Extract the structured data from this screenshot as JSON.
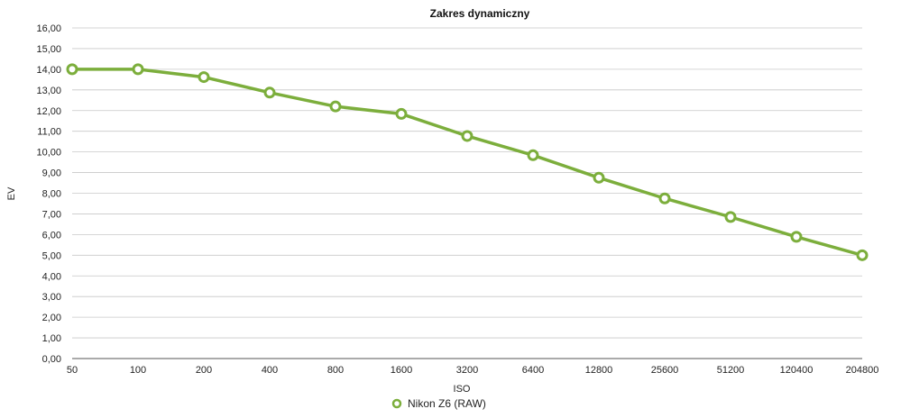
{
  "chart_data": {
    "type": "line",
    "title": "Zakres dynamiczny",
    "xlabel": "ISO",
    "ylabel": "EV",
    "categories": [
      "50",
      "100",
      "200",
      "400",
      "800",
      "1600",
      "3200",
      "6400",
      "12800",
      "25600",
      "51200",
      "120400",
      "204800"
    ],
    "series": [
      {
        "name": "Nikon Z6 (RAW)",
        "color": "#7cae3c",
        "values": [
          14.0,
          14.0,
          13.62,
          12.87,
          12.2,
          11.84,
          10.77,
          9.84,
          8.75,
          7.75,
          6.85,
          5.89,
          5.0
        ]
      }
    ],
    "ylim": [
      0,
      16
    ],
    "yticks": [
      "0,00",
      "1,00",
      "2,00",
      "3,00",
      "4,00",
      "5,00",
      "6,00",
      "7,00",
      "8,00",
      "9,00",
      "10,00",
      "11,00",
      "12,00",
      "13,00",
      "14,00",
      "15,00",
      "16,00"
    ],
    "grid": true,
    "legend_position": "bottom"
  }
}
